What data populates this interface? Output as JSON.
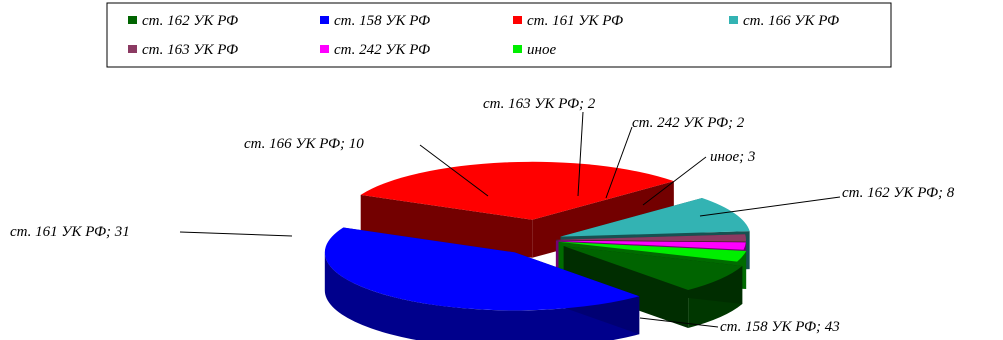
{
  "chart_data": {
    "type": "pie",
    "style": "3d-exploded",
    "legend_position": "top",
    "slices": [
      {
        "label": "ст. 162 УК РФ",
        "value": 8,
        "color": "#006400",
        "text": "ст. 162 УК РФ; 8"
      },
      {
        "label": "ст. 158 УК РФ",
        "value": 43,
        "color": "#0000ff",
        "text": "ст. 158 УК РФ; 43"
      },
      {
        "label": "ст. 161 УК РФ",
        "value": 31,
        "color": "#ff0000",
        "text": "ст. 161 УК РФ; 31"
      },
      {
        "label": "ст. 166 УК РФ",
        "value": 10,
        "color": "#33b3b3",
        "text": "ст. 166 УК РФ; 10"
      },
      {
        "label": "ст. 163 УК РФ",
        "value": 2,
        "color": "#8b3a62",
        "text": "ст. 163 УК РФ; 2"
      },
      {
        "label": "ст. 242 УК РФ",
        "value": 2,
        "color": "#ff00ff",
        "text": "ст. 242 УК РФ; 2"
      },
      {
        "label": "иное",
        "value": 3,
        "color": "#00ee00",
        "text": "иное; 3"
      }
    ]
  }
}
